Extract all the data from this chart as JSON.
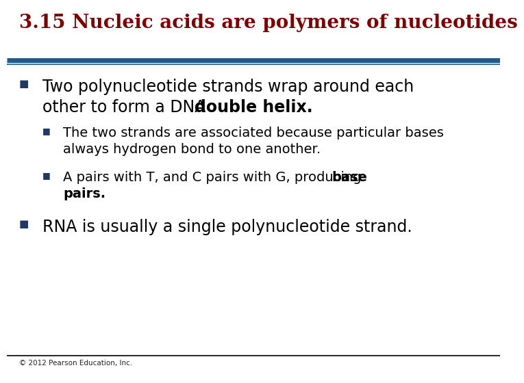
{
  "title": "3.15 Nucleic acids are polymers of nucleotides",
  "title_color": "#7B0000",
  "title_fontsize": 20,
  "separator_color": "#1F5C8B",
  "background_color": "#FFFFFF",
  "bullet_color": "#1F3864",
  "bullet1_line1": "Two polynucleotide strands wrap around each",
  "bullet1_line2_normal": "other to form a DNA ",
  "bullet1_line2_bold": "double helix.",
  "bullet1_fontsize": 17,
  "sub_bullet1_line1": "The two strands are associated because particular bases",
  "sub_bullet1_line2": "always hydrogen bond to one another.",
  "sub_bullet1_fontsize": 14,
  "sub_bullet2_line1_normal": "A pairs with T, and C pairs with G, producing ",
  "sub_bullet2_line1_bold": "base",
  "sub_bullet2_line2_bold": "pairs.",
  "sub_bullet2_fontsize": 14,
  "bullet2_text": "RNA is usually a single polynucleotide strand.",
  "bullet2_fontsize": 17,
  "footer_text": "© 2012 Pearson Education, Inc.",
  "footer_fontsize": 7.5,
  "footer_color": "#222222",
  "text_color": "#000000"
}
